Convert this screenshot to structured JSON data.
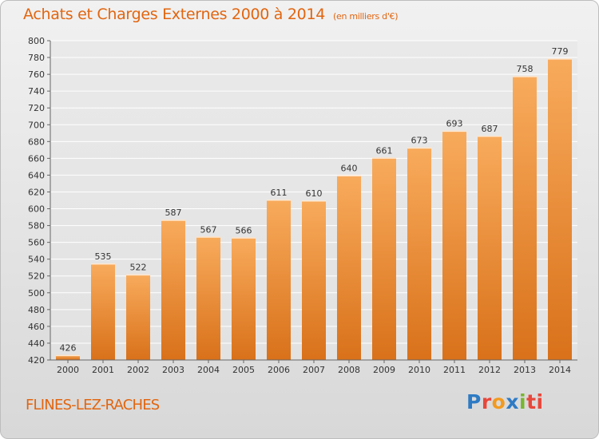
{
  "header": {
    "title": "Achats et Charges Externes 2000 à 2014",
    "subtitle": "(en milliers d'€)"
  },
  "footer": {
    "town": "FLINES-LEZ-RACHES",
    "logo": [
      "P",
      "r",
      "o",
      "x",
      "i",
      "ti"
    ]
  },
  "colors": {
    "accent": "#e2650f",
    "bar_light": "#f8ab5c",
    "bar_dark": "#d9711a",
    "grid": "#ffffff",
    "background": "#e6e6e6"
  },
  "chart_data": {
    "type": "bar",
    "title": "Achats et Charges Externes 2000 à 2014",
    "subtitle": "(en milliers d'€)",
    "xlabel": "",
    "ylabel": "",
    "categories": [
      "2000",
      "2001",
      "2002",
      "2003",
      "2004",
      "2005",
      "2006",
      "2007",
      "2008",
      "2009",
      "2010",
      "2011",
      "2012",
      "2013",
      "2014"
    ],
    "values": [
      426,
      535,
      522,
      587,
      567,
      566,
      611,
      610,
      640,
      661,
      673,
      693,
      687,
      758,
      779
    ],
    "data_labels": [
      "426",
      "535",
      "522",
      "587",
      "567",
      "566",
      "611",
      "610",
      "640",
      "661",
      "673",
      "693",
      "687",
      "758",
      "779"
    ],
    "ylim": [
      420,
      800
    ],
    "yticks": [
      420,
      440,
      460,
      480,
      500,
      520,
      540,
      560,
      580,
      600,
      620,
      640,
      660,
      680,
      700,
      720,
      740,
      760,
      780,
      800
    ],
    "grid": true,
    "legend": "none"
  }
}
